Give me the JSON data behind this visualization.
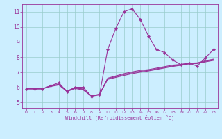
{
  "xlabel": "Windchill (Refroidissement éolien,°C)",
  "bg_color": "#cceeff",
  "line_color": "#993399",
  "grid_color": "#99cccc",
  "xlim": [
    -0.5,
    23.5
  ],
  "ylim": [
    4.6,
    11.5
  ],
  "xticks": [
    0,
    1,
    2,
    3,
    4,
    5,
    6,
    7,
    8,
    9,
    10,
    11,
    12,
    13,
    14,
    15,
    16,
    17,
    18,
    19,
    20,
    21,
    22,
    23
  ],
  "yticks": [
    5,
    6,
    7,
    8,
    9,
    10,
    11
  ],
  "curve1": [
    5.9,
    5.9,
    5.9,
    6.1,
    6.3,
    5.7,
    6.0,
    6.0,
    5.4,
    5.5,
    8.5,
    9.9,
    11.0,
    11.2,
    10.5,
    9.4,
    8.5,
    8.3,
    7.8,
    7.5,
    7.6,
    7.4,
    7.95,
    8.5
  ],
  "curve2": [
    5.9,
    5.9,
    5.9,
    6.05,
    6.15,
    5.72,
    5.92,
    5.82,
    5.42,
    5.52,
    6.52,
    6.65,
    6.78,
    6.9,
    7.0,
    7.08,
    7.18,
    7.28,
    7.38,
    7.46,
    7.55,
    7.57,
    7.68,
    7.78
  ],
  "curve3": [
    5.9,
    5.9,
    5.9,
    6.08,
    6.18,
    5.74,
    5.96,
    5.86,
    5.43,
    5.53,
    6.56,
    6.7,
    6.84,
    6.96,
    7.06,
    7.12,
    7.22,
    7.32,
    7.42,
    7.48,
    7.57,
    7.59,
    7.72,
    7.82
  ],
  "curve4": [
    5.9,
    5.9,
    5.9,
    6.1,
    6.2,
    5.76,
    5.98,
    5.88,
    5.44,
    5.54,
    6.6,
    6.75,
    6.9,
    7.02,
    7.12,
    7.17,
    7.27,
    7.37,
    7.47,
    7.52,
    7.6,
    7.62,
    7.76,
    7.86
  ]
}
